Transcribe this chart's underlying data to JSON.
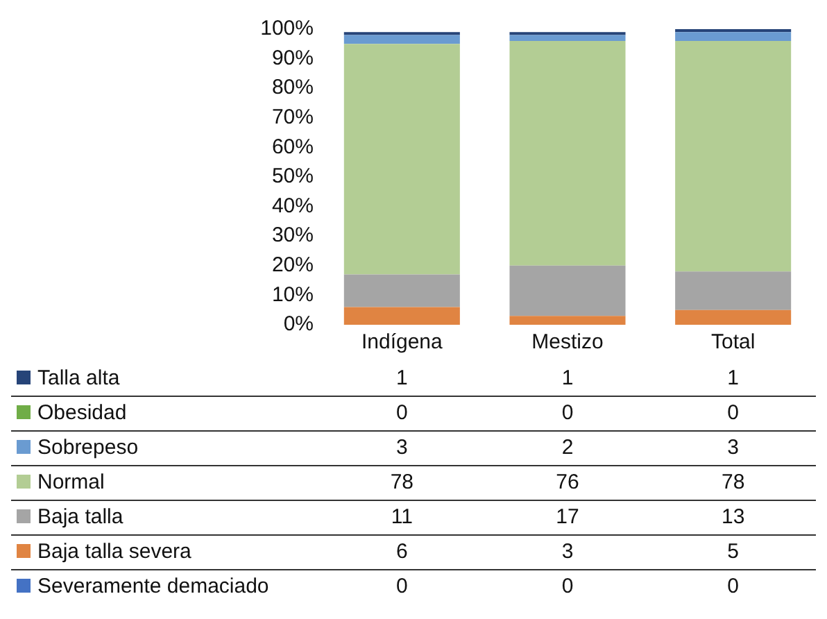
{
  "chart_data": {
    "type": "bar",
    "stacked": true,
    "categories": [
      "Indígena",
      "Mestizo",
      "Total"
    ],
    "series": [
      {
        "name": "Severamente demaciado",
        "color": "#4472c4",
        "values": [
          0,
          0,
          0
        ],
        "value_labels": [
          "0",
          "0",
          "0"
        ]
      },
      {
        "name": "Baja talla severa",
        "color": "#e08442",
        "values": [
          6,
          3,
          5
        ],
        "value_labels": [
          "6",
          "3",
          "5"
        ]
      },
      {
        "name": "Baja talla",
        "color": "#a5a5a5",
        "values": [
          11,
          17,
          13
        ],
        "value_labels": [
          "11",
          "17",
          "13"
        ]
      },
      {
        "name": "Normal",
        "color": "#b3cd94",
        "values": [
          78,
          76,
          78
        ],
        "value_labels": [
          "78",
          "76",
          "78"
        ]
      },
      {
        "name": "Sobrepeso",
        "color": "#6a9bd1",
        "values": [
          3,
          2,
          3
        ],
        "value_labels": [
          "3",
          "2",
          "3"
        ]
      },
      {
        "name": "Obesidad",
        "color": "#70ad47",
        "values": [
          0,
          0,
          0
        ],
        "value_labels": [
          "0",
          "0",
          "0"
        ]
      },
      {
        "name": "Talla alta",
        "color": "#264478",
        "values": [
          1,
          1,
          1
        ],
        "value_labels": [
          "1",
          "1",
          "1"
        ]
      }
    ],
    "ylim": [
      0,
      100
    ],
    "yticks": [
      {
        "value": 0,
        "label": "0%"
      },
      {
        "value": 10,
        "label": "10%"
      },
      {
        "value": 20,
        "label": "20%"
      },
      {
        "value": 30,
        "label": "30%"
      },
      {
        "value": 40,
        "label": "40%"
      },
      {
        "value": 50,
        "label": "50%"
      },
      {
        "value": 60,
        "label": "60%"
      },
      {
        "value": 70,
        "label": "70%"
      },
      {
        "value": 80,
        "label": "80%"
      },
      {
        "value": 90,
        "label": "90%"
      },
      {
        "value": 100,
        "label": "100%"
      }
    ],
    "grid": false,
    "legend": "bottom"
  }
}
